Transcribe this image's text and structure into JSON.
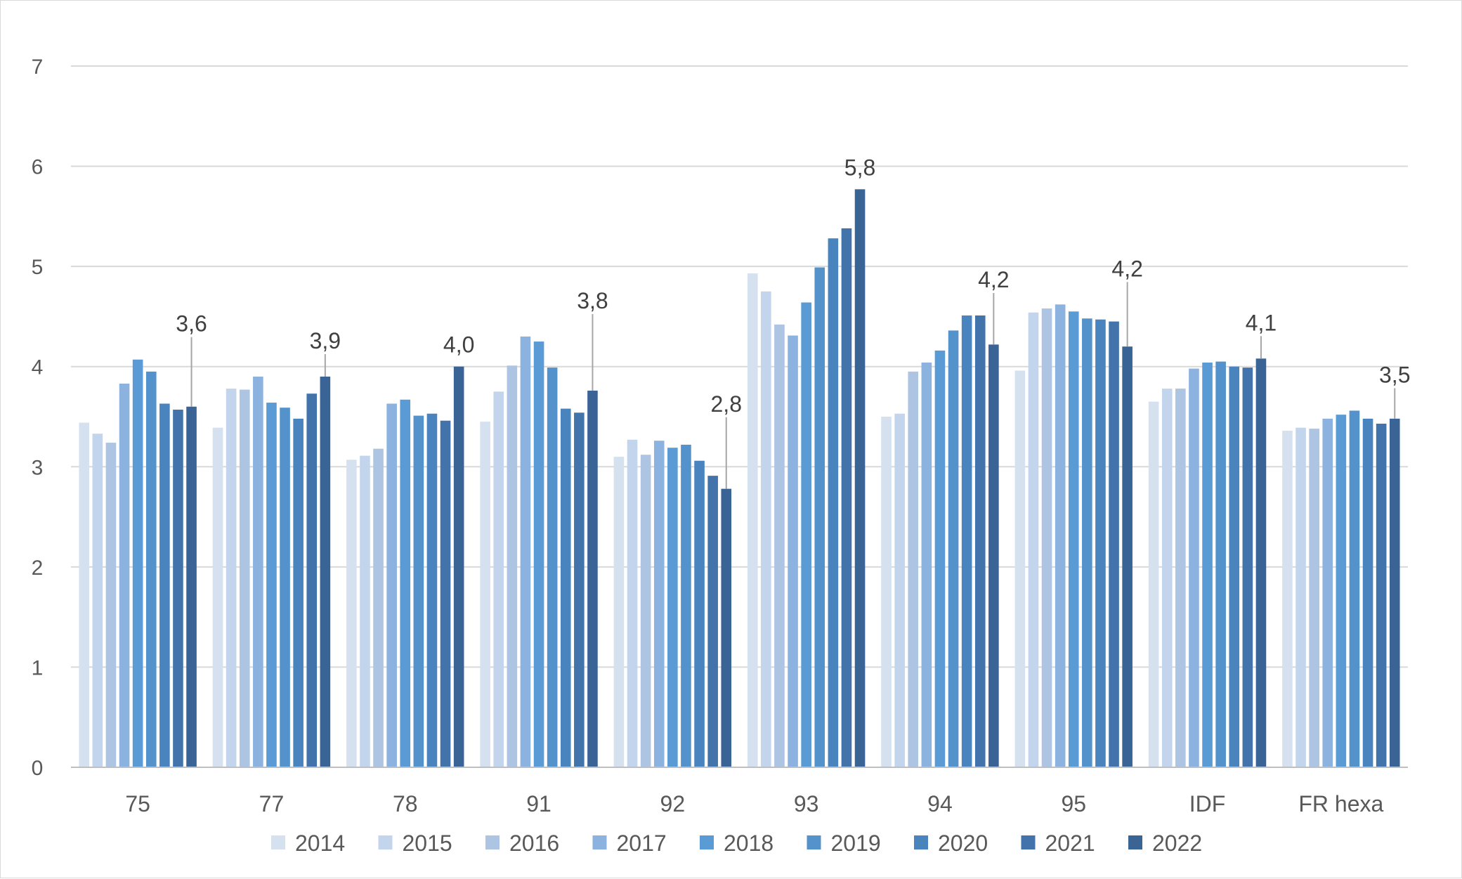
{
  "chart_data": {
    "type": "bar",
    "title": "",
    "xlabel": "",
    "ylabel": "",
    "ylim": [
      0,
      7
    ],
    "yticks": [
      "0",
      "1",
      "2",
      "3",
      "4",
      "5",
      "6",
      "7"
    ],
    "grid": true,
    "legend_position": "bottom",
    "categories": [
      "75",
      "77",
      "78",
      "91",
      "92",
      "93",
      "94",
      "95",
      "IDF",
      "FR hexa"
    ],
    "series": [
      {
        "name": "2014",
        "color": "#d6e1f0",
        "values": [
          3.44,
          3.39,
          3.07,
          3.45,
          3.1,
          4.93,
          3.5,
          3.96,
          3.65,
          3.36
        ]
      },
      {
        "name": "2015",
        "color": "#c3d5ec",
        "values": [
          3.33,
          3.78,
          3.11,
          3.75,
          3.27,
          4.75,
          3.53,
          4.54,
          3.78,
          3.39
        ]
      },
      {
        "name": "2016",
        "color": "#adc4e3",
        "values": [
          3.24,
          3.77,
          3.18,
          4.01,
          3.12,
          4.42,
          3.95,
          4.58,
          3.78,
          3.38
        ]
      },
      {
        "name": "2017",
        "color": "#8cb2df",
        "values": [
          3.83,
          3.9,
          3.63,
          4.3,
          3.26,
          4.31,
          4.04,
          4.62,
          3.98,
          3.48
        ]
      },
      {
        "name": "2018",
        "color": "#5b9bd5",
        "values": [
          4.07,
          3.64,
          3.67,
          4.25,
          3.19,
          4.64,
          4.16,
          4.55,
          4.04,
          3.52
        ]
      },
      {
        "name": "2019",
        "color": "#5492cc",
        "values": [
          3.95,
          3.59,
          3.51,
          3.99,
          3.22,
          4.99,
          4.36,
          4.48,
          4.05,
          3.56
        ]
      },
      {
        "name": "2020",
        "color": "#4a84bf",
        "values": [
          3.63,
          3.48,
          3.53,
          3.58,
          3.06,
          5.28,
          4.51,
          4.47,
          4.0,
          3.48
        ]
      },
      {
        "name": "2021",
        "color": "#4274ab",
        "values": [
          3.57,
          3.73,
          3.46,
          3.54,
          2.91,
          5.38,
          4.51,
          4.45,
          3.99,
          3.43
        ]
      },
      {
        "name": "2022",
        "color": "#3a6496",
        "values": [
          3.6,
          3.9,
          4.0,
          3.76,
          2.78,
          5.77,
          4.22,
          4.2,
          4.08,
          3.48
        ]
      }
    ],
    "data_labels": [
      "3,6",
      "3,9",
      "4,0",
      "3,8",
      "2,8",
      "5,8",
      "4,2",
      "4,2",
      "4,1",
      "3,5"
    ],
    "gridline_color": "#d9d9d9",
    "axis_color": "#bfbfbf",
    "text_color": "#595959",
    "label_color": "#404040",
    "leader_color": "#a6a6a6"
  }
}
